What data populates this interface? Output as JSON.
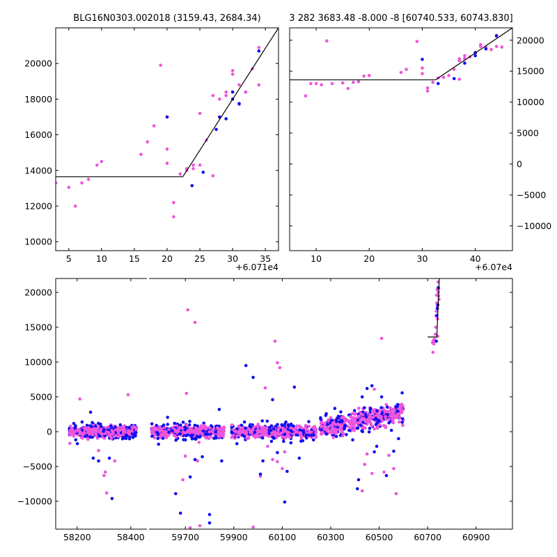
{
  "colors": {
    "magenta": "#ee55dd",
    "blue": "#1010ee",
    "model": "#000000"
  },
  "chart_data": [
    {
      "type": "scatter",
      "title": "BLG16N0303.002018 (3159.43, 2684.34)",
      "offset_label": "+6.071e4",
      "xlim": [
        3,
        37
      ],
      "ylim": [
        9500,
        22000
      ],
      "xticks": [
        5,
        10,
        15,
        20,
        25,
        30,
        35
      ],
      "yticks": [
        10000,
        12000,
        14000,
        16000,
        18000,
        20000
      ],
      "y_axis_side": "left",
      "model": [
        [
          3,
          13650
        ],
        [
          22.4,
          13650
        ],
        [
          37,
          22000
        ]
      ],
      "series": [
        {
          "color": "magenta",
          "points": [
            [
              3,
              13300
            ],
            [
              5,
              13050
            ],
            [
              6,
              12000
            ],
            [
              7,
              13300
            ],
            [
              8,
              13500
            ],
            [
              9.3,
              14300
            ],
            [
              10,
              14500
            ],
            [
              16,
              14900
            ],
            [
              17,
              15600
            ],
            [
              18,
              16500
            ],
            [
              19,
              19900
            ],
            [
              20,
              17000
            ],
            [
              20,
              15200
            ],
            [
              20,
              14400
            ],
            [
              21,
              12200
            ],
            [
              21,
              11400
            ],
            [
              22,
              13800
            ],
            [
              23,
              14000
            ],
            [
              23,
              14100
            ],
            [
              24,
              14300
            ],
            [
              24,
              14100
            ],
            [
              25,
              14300
            ],
            [
              25,
              17200
            ],
            [
              26,
              15700
            ],
            [
              27,
              13700
            ],
            [
              27,
              18200
            ],
            [
              28,
              17000
            ],
            [
              28,
              18000
            ],
            [
              29,
              18200
            ],
            [
              29,
              18400
            ],
            [
              30,
              19600
            ],
            [
              30,
              19400
            ],
            [
              31,
              17700
            ],
            [
              31,
              18800
            ],
            [
              32,
              18400
            ],
            [
              32,
              18400
            ],
            [
              33,
              19700
            ],
            [
              34,
              18800
            ],
            [
              34,
              20900
            ]
          ]
        },
        {
          "color": "blue",
          "points": [
            [
              20,
              17000
            ],
            [
              23.8,
              13150
            ],
            [
              25.5,
              13900
            ],
            [
              27.5,
              16300
            ],
            [
              28,
              17000
            ],
            [
              29,
              16900
            ],
            [
              30,
              18400
            ],
            [
              30,
              18000
            ],
            [
              31,
              17750
            ],
            [
              34,
              20700
            ]
          ]
        }
      ]
    },
    {
      "type": "scatter",
      "title": "3 282 3683.48 -8.000 -8 [60740.533, 60743.830]",
      "offset_label": "+6.07e4",
      "xlim": [
        5,
        47
      ],
      "ylim": [
        -14000,
        22000
      ],
      "xticks": [
        10,
        20,
        30,
        40
      ],
      "yticks": [
        -10000,
        -5000,
        0,
        5000,
        10000,
        15000,
        20000
      ],
      "y_axis_side": "right",
      "model": [
        [
          5,
          13600
        ],
        [
          32.5,
          13600
        ],
        [
          47,
          22000
        ]
      ],
      "series": [
        {
          "color": "magenta",
          "points": [
            [
              8,
              11000
            ],
            [
              9,
              13000
            ],
            [
              10,
              13000
            ],
            [
              11,
              12800
            ],
            [
              12,
              19900
            ],
            [
              13,
              13000
            ],
            [
              15,
              13100
            ],
            [
              16,
              12200
            ],
            [
              17,
              13200
            ],
            [
              18,
              13300
            ],
            [
              19,
              14200
            ],
            [
              20,
              14300
            ],
            [
              26,
              14800
            ],
            [
              27,
              15300
            ],
            [
              29,
              19800
            ],
            [
              30,
              15500
            ],
            [
              30,
              14600
            ],
            [
              31,
              12300
            ],
            [
              31,
              11800
            ],
            [
              32,
              13200
            ],
            [
              33,
              13900
            ],
            [
              34,
              14000
            ],
            [
              35,
              14300
            ],
            [
              36,
              15300
            ],
            [
              37,
              13700
            ],
            [
              37,
              16700
            ],
            [
              37,
              17000
            ],
            [
              38,
              17500
            ],
            [
              38,
              17000
            ],
            [
              39,
              17300
            ],
            [
              40,
              18000
            ],
            [
              41,
              19300
            ],
            [
              41,
              19000
            ],
            [
              42,
              18900
            ],
            [
              43,
              18500
            ],
            [
              44,
              19000
            ],
            [
              44,
              20800
            ],
            [
              45,
              18900
            ]
          ]
        },
        {
          "color": "blue",
          "points": [
            [
              30,
              16900
            ],
            [
              33,
              13000
            ],
            [
              36,
              13800
            ],
            [
              38,
              16300
            ],
            [
              40,
              17500
            ],
            [
              40,
              18000
            ],
            [
              42,
              18600
            ],
            [
              44,
              20700
            ]
          ]
        }
      ]
    },
    {
      "type": "scatter",
      "broken_axis": true,
      "xlim": [
        58120,
        61050
      ],
      "ylim": [
        -14000,
        22000
      ],
      "xticks": [
        58200,
        58400,
        59700,
        59900,
        60100,
        60300,
        60500,
        60700,
        60900
      ],
      "yticks": [
        -10000,
        -5000,
        0,
        5000,
        10000,
        15000,
        20000
      ],
      "segments": [
        {
          "x0": 58120,
          "x1": 58460,
          "x_min": 58170,
          "x_max": 58420
        },
        {
          "x0": 59550,
          "x1": 61050,
          "seasons": [
            [
              59560,
              59860
            ],
            [
              59890,
              60240
            ],
            [
              60255,
              60600
            ]
          ]
        }
      ],
      "model": [
        [
          60700,
          13600
        ],
        [
          60738,
          13600
        ],
        [
          60748,
          22000
        ]
      ],
      "outliers": [
        {
          "color": "magenta",
          "points": [
            [
              58210,
              4700
            ],
            [
              58280,
              -2700
            ],
            [
              58300,
              -6300
            ],
            [
              58305,
              -5800
            ],
            [
              58310,
              -8800
            ],
            [
              58340,
              -4200
            ],
            [
              58390,
              5300
            ],
            [
              59690,
              -6900
            ],
            [
              59700,
              -3500
            ],
            [
              59705,
              5500
            ],
            [
              59710,
              17500
            ],
            [
              59740,
              15700
            ],
            [
              59750,
              -4200
            ],
            [
              59720,
              -13800
            ],
            [
              59760,
              -13500
            ],
            [
              59980,
              -13700
            ],
            [
              60010,
              -6400
            ],
            [
              60030,
              6300
            ],
            [
              60040,
              -2100
            ],
            [
              60060,
              -4000
            ],
            [
              60070,
              13000
            ],
            [
              60080,
              9900
            ],
            [
              60090,
              9200
            ],
            [
              60100,
              -5300
            ],
            [
              60110,
              -2900
            ],
            [
              60080,
              -4300
            ],
            [
              60430,
              -8500
            ],
            [
              60440,
              -4700
            ],
            [
              60450,
              -3200
            ],
            [
              60470,
              -6000
            ],
            [
              60480,
              6100
            ],
            [
              60510,
              13400
            ],
            [
              60520,
              -5800
            ],
            [
              60540,
              -3400
            ],
            [
              60560,
              -5300
            ],
            [
              60570,
              -8900
            ],
            [
              60580,
              2200
            ],
            [
              60595,
              3000
            ]
          ]
        },
        {
          "color": "blue",
          "points": [
            [
              58250,
              2800
            ],
            [
              58260,
              -3800
            ],
            [
              58280,
              -4200
            ],
            [
              58320,
              -3800
            ],
            [
              58330,
              -9600
            ],
            [
              59660,
              -8900
            ],
            [
              59680,
              -11700
            ],
            [
              59720,
              -6500
            ],
            [
              59740,
              -4000
            ],
            [
              59770,
              -3600
            ],
            [
              59800,
              -11900
            ],
            [
              59800,
              -13100
            ],
            [
              59840,
              3200
            ],
            [
              59850,
              -4200
            ],
            [
              59950,
              9500
            ],
            [
              59980,
              7800
            ],
            [
              60010,
              -6100
            ],
            [
              60020,
              -4200
            ],
            [
              60060,
              4600
            ],
            [
              60080,
              -3000
            ],
            [
              60110,
              -10100
            ],
            [
              60120,
              -5700
            ],
            [
              60150,
              6400
            ],
            [
              60170,
              -3800
            ],
            [
              60410,
              -8200
            ],
            [
              60415,
              -6900
            ],
            [
              60430,
              5000
            ],
            [
              60450,
              6200
            ],
            [
              60470,
              6600
            ],
            [
              60480,
              -2900
            ],
            [
              60490,
              -2100
            ],
            [
              60510,
              5000
            ],
            [
              60530,
              -6300
            ],
            [
              60560,
              -2800
            ],
            [
              60580,
              -1000
            ]
          ]
        }
      ],
      "late_points": {
        "magenta": [
          [
            60720,
            12800
          ],
          [
            60722,
            11400
          ],
          [
            60724,
            13100
          ],
          [
            60726,
            12600
          ],
          [
            60728,
            13300
          ],
          [
            60730,
            13000
          ],
          [
            60732,
            14000
          ],
          [
            60734,
            15000
          ],
          [
            60735,
            16600
          ],
          [
            60736,
            17300
          ],
          [
            60737,
            19600
          ],
          [
            60738,
            18500
          ],
          [
            60739,
            20400
          ],
          [
            60740,
            18000
          ],
          [
            60741,
            16200
          ],
          [
            60742,
            13700
          ],
          [
            60743,
            21500
          ],
          [
            60744,
            20000
          ],
          [
            60745,
            19500
          ],
          [
            60746,
            20600
          ],
          [
            60747,
            19000
          ]
        ],
        "blue": [
          [
            60736,
            13000
          ],
          [
            60738,
            16700
          ],
          [
            60740,
            17700
          ],
          [
            60742,
            18200
          ],
          [
            60744,
            20700
          ]
        ]
      }
    }
  ]
}
